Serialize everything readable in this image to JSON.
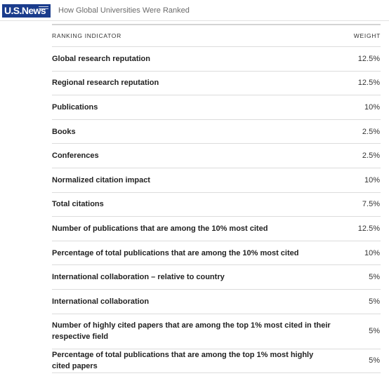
{
  "header": {
    "logo_text": "U.S.News",
    "title": "How Global Universities Were Ranked"
  },
  "table": {
    "columns": [
      "RANKING INDICATOR",
      "WEIGHT"
    ],
    "rows": [
      {
        "indicator": "Global research reputation",
        "weight": "12.5%"
      },
      {
        "indicator": "Regional research reputation",
        "weight": "12.5%"
      },
      {
        "indicator": "Publications",
        "weight": "10%"
      },
      {
        "indicator": "Books",
        "weight": "2.5%"
      },
      {
        "indicator": "Conferences",
        "weight": "2.5%"
      },
      {
        "indicator": "Normalized citation impact",
        "weight": "10%"
      },
      {
        "indicator": "Total citations",
        "weight": "7.5%"
      },
      {
        "indicator": "Number of publications that are among the 10% most cited",
        "weight": "12.5%"
      },
      {
        "indicator": "Percentage of total publications that are among the 10% most cited",
        "weight": "10%"
      },
      {
        "indicator": "International collaboration – relative to country",
        "weight": "5%"
      },
      {
        "indicator": "International collaboration",
        "weight": "5%"
      },
      {
        "indicator": "Number of highly cited papers that are among the top 1% most cited in their respective field",
        "weight": "5%"
      },
      {
        "indicator": "Percentage of total publications that are among the top 1% most highly cited papers",
        "weight": "5%"
      }
    ]
  },
  "colors": {
    "logo_background": "#1a3c8c",
    "divider": "#dcdcdc"
  }
}
